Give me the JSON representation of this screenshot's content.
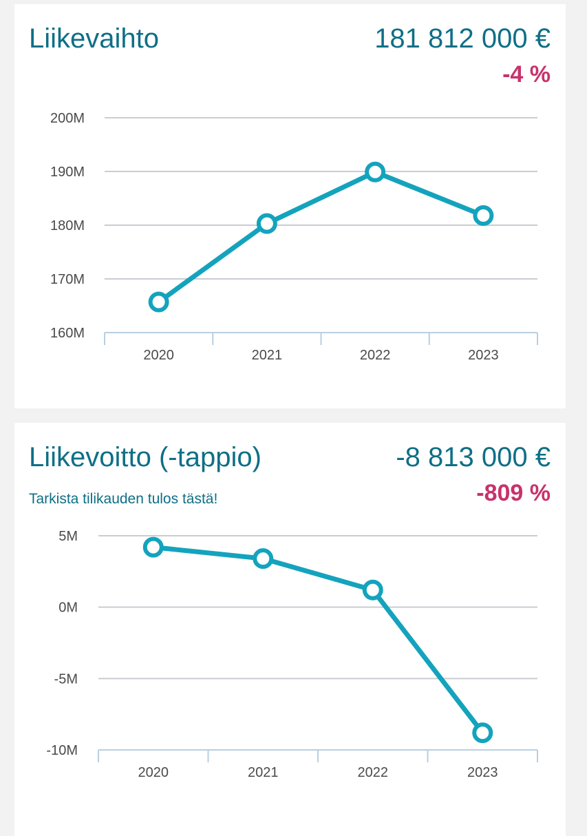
{
  "cards": [
    {
      "title": "Liikevaihto",
      "value": "181 812 000 €",
      "change": "-4 %"
    },
    {
      "title": "Liikevoitto (-tappio)",
      "value": "-8 813 000 €",
      "change": "-809 %",
      "link": "Tarkista tilikauden tulos tästä!"
    }
  ],
  "colors": {
    "line": "#14a3bd",
    "title": "#0e6f86",
    "change": "#c8326c",
    "grid": "#c9ccd1",
    "axis": "#b7cfe0"
  },
  "chart_data": [
    {
      "type": "line",
      "categories": [
        "2020",
        "2021",
        "2022",
        "2023"
      ],
      "values": [
        165.7,
        180.3,
        189.9,
        181.8
      ],
      "yticks": [
        "160M",
        "170M",
        "180M",
        "190M",
        "200M"
      ],
      "ylim": [
        160,
        200
      ],
      "grid": true
    },
    {
      "type": "line",
      "categories": [
        "2020",
        "2021",
        "2022",
        "2023"
      ],
      "values": [
        4.2,
        3.4,
        1.2,
        -8.8
      ],
      "yticks": [
        "-10M",
        "-5M",
        "0M",
        "5M"
      ],
      "ylim": [
        -10,
        5
      ],
      "grid": true
    }
  ]
}
